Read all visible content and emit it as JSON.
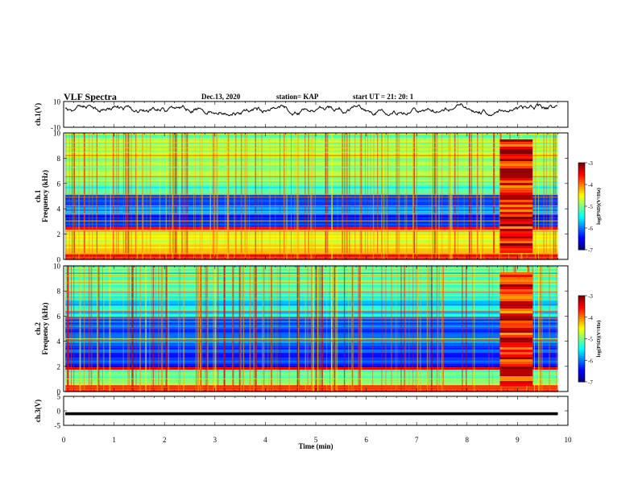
{
  "header": {
    "title": "VLF Spectra",
    "date": "Dec.13, 2020",
    "station": "station= KAP",
    "start": "start  UT =   21: 20: 1"
  },
  "chart_data": [
    {
      "type": "line",
      "panel": "ch1-waveform",
      "ylabel": "ch.1(V)",
      "ylim": [
        -10,
        10
      ],
      "yticks": [
        10,
        -10
      ],
      "xlim": [
        0,
        10
      ],
      "note_series": "continuous noisy voltage trace around +4 V",
      "series": [
        {
          "values_summary": {
            "mean": 4,
            "min": -1,
            "max": 9
          }
        }
      ]
    },
    {
      "type": "heatmap",
      "panel": "ch1-spectrogram",
      "ylabel": "ch.1\nFrequency (kHz)",
      "ylim": [
        0,
        10
      ],
      "yticks": [
        "0",
        "2",
        "4",
        "6",
        "8",
        "10"
      ],
      "xlim": [
        0,
        9.8
      ],
      "colorbar": {
        "label": "log(PSD)(V²/Hz)",
        "range": [
          -7,
          -3
        ],
        "ticks": [
          "-3",
          "-4",
          "-5",
          "-6",
          "-7"
        ]
      },
      "bands_log_psd": [
        {
          "from_khz": 0,
          "to_khz": 0.6,
          "value": -3.6
        },
        {
          "from_khz": 0.6,
          "to_khz": 2.4,
          "value": -4.6
        },
        {
          "from_khz": 2.4,
          "to_khz": 2.6,
          "value": -3.4
        },
        {
          "from_khz": 2.6,
          "to_khz": 3.6,
          "value": -6.4
        },
        {
          "from_khz": 3.6,
          "to_khz": 4.2,
          "value": -5.8
        },
        {
          "from_khz": 4.2,
          "to_khz": 5.2,
          "value": -6.2
        },
        {
          "from_khz": 5.2,
          "to_khz": 6.0,
          "value": -5.3
        },
        {
          "from_khz": 6.0,
          "to_khz": 10,
          "value": -4.9
        }
      ],
      "event": {
        "from_min": 8.65,
        "to_min": 9.3,
        "value": -3.5
      }
    },
    {
      "type": "heatmap",
      "panel": "ch2-spectrogram",
      "ylabel": "ch.2\nFrequency (kHz)",
      "ylim": [
        0,
        10
      ],
      "yticks": [
        "0",
        "2",
        "4",
        "6",
        "8",
        "10"
      ],
      "xlim": [
        0,
        9.8
      ],
      "colorbar": {
        "label": "log(PSD)(V²/Hz)",
        "range": [
          -7,
          -3
        ],
        "ticks": [
          "-3",
          "-4",
          "-5",
          "-6",
          "-7"
        ]
      },
      "bands_log_psd": [
        {
          "from_khz": 0,
          "to_khz": 0.6,
          "value": -3.8
        },
        {
          "from_khz": 0.6,
          "to_khz": 1.8,
          "value": -5.0
        },
        {
          "from_khz": 1.8,
          "to_khz": 2.0,
          "value": -3.5
        },
        {
          "from_khz": 2.0,
          "to_khz": 3.6,
          "value": -6.4
        },
        {
          "from_khz": 3.6,
          "to_khz": 4.4,
          "value": -6.0
        },
        {
          "from_khz": 4.4,
          "to_khz": 6.0,
          "value": -6.2
        },
        {
          "from_khz": 6.0,
          "to_khz": 7.6,
          "value": -5.6
        },
        {
          "from_khz": 7.6,
          "to_khz": 10,
          "value": -5.2
        }
      ],
      "event": {
        "from_min": 8.65,
        "to_min": 9.3,
        "value": -3.6
      }
    },
    {
      "type": "line",
      "panel": "ch3-waveform",
      "ylabel": "ch.3(V)",
      "ylim": [
        -5,
        5
      ],
      "yticks": [
        5,
        0,
        -5
      ],
      "xlim": [
        0,
        10
      ],
      "series": [
        {
          "values_summary": {
            "mean": -1,
            "band_min": -1.5,
            "band_max": -0.5
          }
        }
      ]
    }
  ],
  "x_axis": {
    "label": "Time  (min)",
    "ticks": [
      "0",
      "1",
      "2",
      "3",
      "4",
      "5",
      "6",
      "7",
      "8",
      "9",
      "10"
    ],
    "range": [
      0,
      10
    ]
  },
  "colors": {
    "frame": "#000000",
    "background": "#ffffff"
  }
}
